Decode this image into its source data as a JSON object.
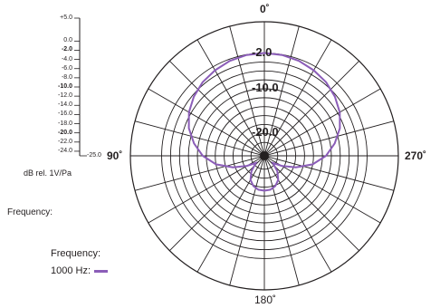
{
  "chart_data": {
    "type": "polar",
    "scale_labels": [
      {
        "text": "+5.0",
        "db": 5,
        "bold": false
      },
      {
        "text": "0.0",
        "db": 0,
        "bold": false
      },
      {
        "text": "-2.0",
        "db": -2,
        "bold": true
      },
      {
        "text": "-4.0",
        "db": -4,
        "bold": false
      },
      {
        "text": "-6.0",
        "db": -6,
        "bold": false
      },
      {
        "text": "-8.0",
        "db": -8,
        "bold": false
      },
      {
        "text": "-10.0",
        "db": -10,
        "bold": true
      },
      {
        "text": "-12.0",
        "db": -12,
        "bold": false
      },
      {
        "text": "-14.0",
        "db": -14,
        "bold": false
      },
      {
        "text": "-16.0",
        "db": -16,
        "bold": false
      },
      {
        "text": "-18.0",
        "db": -18,
        "bold": false
      },
      {
        "text": "-20.0",
        "db": -20,
        "bold": true
      },
      {
        "text": "-22.0",
        "db": -22,
        "bold": false
      },
      {
        "text": "-24.0",
        "db": -24,
        "bold": false
      },
      {
        "text": "-25.0",
        "db": -25,
        "bold": false
      }
    ],
    "units_label": "dB rel. 1V/Pa",
    "angle_labels": {
      "top": "0˚",
      "left": "90˚",
      "right": "270˚",
      "bottom": "180˚"
    },
    "ring_labels": [
      {
        "text": "-2.0",
        "db": -2
      },
      {
        "text": "-10.0",
        "db": -10
      },
      {
        "text": "-20.0",
        "db": -20
      }
    ],
    "rings_db": [
      -2,
      -4,
      -6,
      -8,
      -10,
      -12,
      -14,
      -16,
      -18,
      -20,
      -22
    ],
    "spoke_step_deg": 15,
    "outer_db": 5,
    "inner_db": -25,
    "frequency_label": "Frequency:",
    "legend": {
      "title": "Frequency:",
      "series_label": "1000 Hz:"
    },
    "series": [
      {
        "name": "1000 Hz",
        "color": "#8b5db8",
        "points": [
          [
            0,
            -2
          ],
          [
            10,
            -2.1
          ],
          [
            20,
            -2.4
          ],
          [
            30,
            -2.9
          ],
          [
            40,
            -3.5
          ],
          [
            50,
            -4.4
          ],
          [
            60,
            -5.5
          ],
          [
            70,
            -7
          ],
          [
            80,
            -9
          ],
          [
            90,
            -11.2
          ],
          [
            100,
            -14
          ],
          [
            110,
            -17.5
          ],
          [
            120,
            -20.5
          ],
          [
            130,
            -22.5
          ],
          [
            140,
            -20.5
          ],
          [
            150,
            -18.8
          ],
          [
            160,
            -17.8
          ],
          [
            170,
            -17.3
          ],
          [
            180,
            -17.2
          ],
          [
            190,
            -17.3
          ],
          [
            200,
            -17.8
          ],
          [
            210,
            -18.8
          ],
          [
            220,
            -20.5
          ],
          [
            230,
            -22.5
          ],
          [
            240,
            -20.5
          ],
          [
            250,
            -17.5
          ],
          [
            260,
            -14
          ],
          [
            270,
            -11.2
          ],
          [
            280,
            -9
          ],
          [
            290,
            -7
          ],
          [
            300,
            -5.5
          ],
          [
            310,
            -4.4
          ],
          [
            320,
            -3.5
          ],
          [
            330,
            -2.9
          ],
          [
            340,
            -2.4
          ],
          [
            350,
            -2.1
          ]
        ]
      }
    ]
  }
}
